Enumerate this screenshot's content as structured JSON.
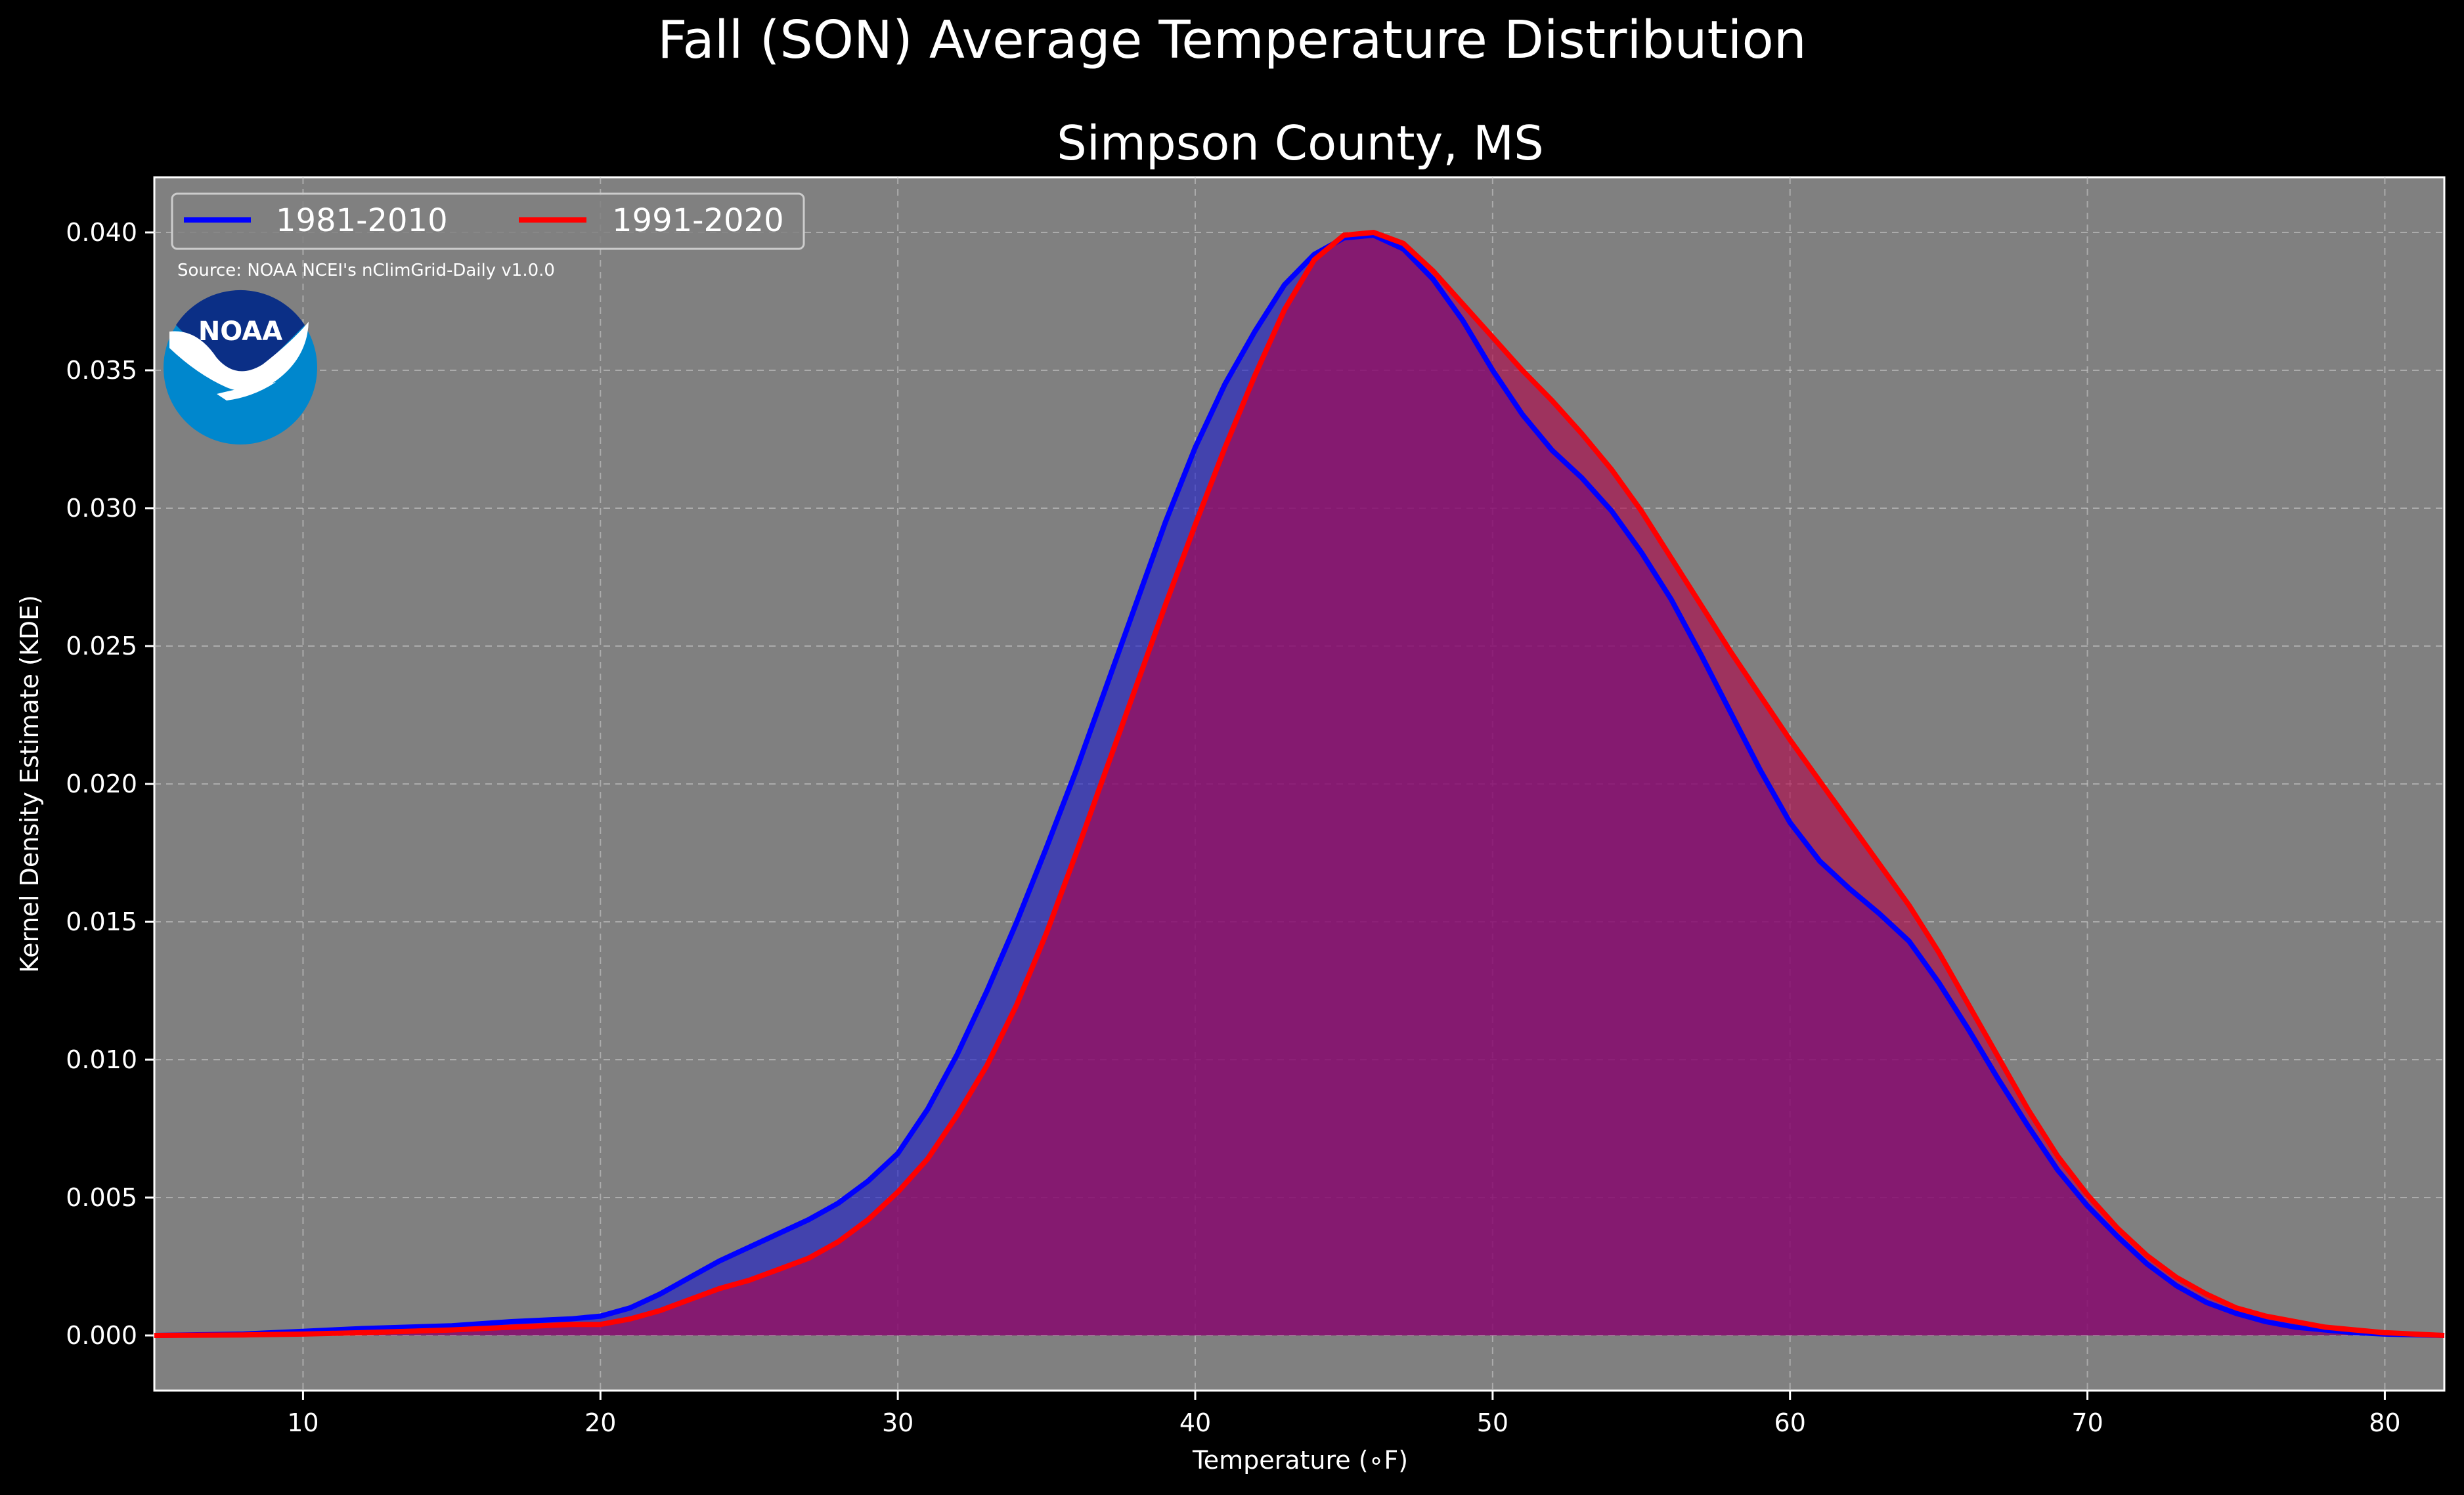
{
  "chart_data": {
    "type": "area",
    "title": "Fall (SON) Average Temperature Distribution",
    "subtitle": "Simpson County, MS",
    "xlabel": "Temperature (∘F)",
    "ylabel": "Kernel Density Estimate (KDE)",
    "source": "Source: NOAA NCEI's nClimGrid-Daily v1.0.0",
    "logo_text": "NOAA",
    "xlim": [
      5,
      82
    ],
    "ylim": [
      -0.002,
      0.042
    ],
    "x_ticks": [
      10,
      20,
      30,
      40,
      50,
      60,
      70,
      80
    ],
    "x_tick_labels": [
      "10",
      "20",
      "30",
      "40",
      "50",
      "60",
      "70",
      "80"
    ],
    "y_ticks": [
      0,
      0.005,
      0.01,
      0.015,
      0.02,
      0.025,
      0.03,
      0.035,
      0.04
    ],
    "y_tick_labels": [
      "0.000",
      "0.005",
      "0.010",
      "0.015",
      "0.020",
      "0.025",
      "0.030",
      "0.035",
      "0.040"
    ],
    "grid": true,
    "legend_position": "top-left",
    "series": [
      {
        "name": "1981-2010",
        "color": "#0000ff",
        "x": [
          5,
          8,
          10,
          12,
          15,
          17,
          19,
          20,
          21,
          22,
          23,
          24,
          25,
          26,
          27,
          28,
          29,
          30,
          31,
          32,
          33,
          34,
          35,
          36,
          37,
          38,
          39,
          40,
          41,
          42,
          43,
          44,
          45,
          46,
          47,
          48,
          49,
          50,
          51,
          52,
          53,
          54,
          55,
          56,
          57,
          58,
          59,
          60,
          61,
          62,
          63,
          64,
          65,
          66,
          67,
          68,
          69,
          70,
          71,
          72,
          73,
          74,
          75,
          76,
          77,
          78,
          79,
          80,
          82
        ],
        "y": [
          0,
          5e-05,
          0.00015,
          0.00025,
          0.00035,
          0.0005,
          0.0006,
          0.0007,
          0.001,
          0.0015,
          0.0021,
          0.0027,
          0.0032,
          0.0037,
          0.0042,
          0.0048,
          0.0056,
          0.0066,
          0.0082,
          0.0102,
          0.0125,
          0.015,
          0.0177,
          0.0205,
          0.0235,
          0.0265,
          0.0295,
          0.0322,
          0.0345,
          0.0364,
          0.0381,
          0.0392,
          0.0398,
          0.0399,
          0.0394,
          0.0383,
          0.0368,
          0.035,
          0.0334,
          0.0321,
          0.0311,
          0.0299,
          0.0284,
          0.0267,
          0.0247,
          0.0226,
          0.0205,
          0.0186,
          0.0172,
          0.0162,
          0.0153,
          0.0143,
          0.0128,
          0.0111,
          0.0093,
          0.0076,
          0.006,
          0.0047,
          0.0036,
          0.0026,
          0.0018,
          0.0012,
          0.0008,
          0.0005,
          0.0003,
          0.0002,
          0.0001,
          5e-05,
          0
        ]
      },
      {
        "name": "1991-2020",
        "color": "#ff0000",
        "x": [
          5,
          8,
          10,
          12,
          15,
          17,
          19,
          20,
          21,
          22,
          23,
          24,
          25,
          26,
          27,
          28,
          29,
          30,
          31,
          32,
          33,
          34,
          35,
          36,
          37,
          38,
          39,
          40,
          41,
          42,
          43,
          44,
          45,
          46,
          47,
          48,
          49,
          50,
          51,
          52,
          53,
          54,
          55,
          56,
          57,
          58,
          59,
          60,
          61,
          62,
          63,
          64,
          65,
          66,
          67,
          68,
          69,
          70,
          71,
          72,
          73,
          74,
          75,
          76,
          77,
          78,
          79,
          80,
          82
        ],
        "y": [
          0,
          2e-05,
          5e-05,
          0.0001,
          0.0002,
          0.0003,
          0.0004,
          0.0004,
          0.0006,
          0.0009,
          0.0013,
          0.0017,
          0.002,
          0.0024,
          0.0028,
          0.0034,
          0.0042,
          0.0052,
          0.0064,
          0.008,
          0.0098,
          0.012,
          0.0146,
          0.0175,
          0.0205,
          0.0235,
          0.0265,
          0.0294,
          0.0322,
          0.0348,
          0.0372,
          0.039,
          0.0399,
          0.04,
          0.0396,
          0.0386,
          0.0374,
          0.0362,
          0.035,
          0.0339,
          0.0327,
          0.0314,
          0.0299,
          0.0282,
          0.0265,
          0.0248,
          0.0232,
          0.0216,
          0.0201,
          0.0186,
          0.0171,
          0.0156,
          0.0139,
          0.012,
          0.0101,
          0.0082,
          0.0065,
          0.0051,
          0.0039,
          0.0029,
          0.0021,
          0.0015,
          0.001,
          0.0007,
          0.0005,
          0.0003,
          0.0002,
          0.0001,
          0
        ]
      }
    ]
  }
}
